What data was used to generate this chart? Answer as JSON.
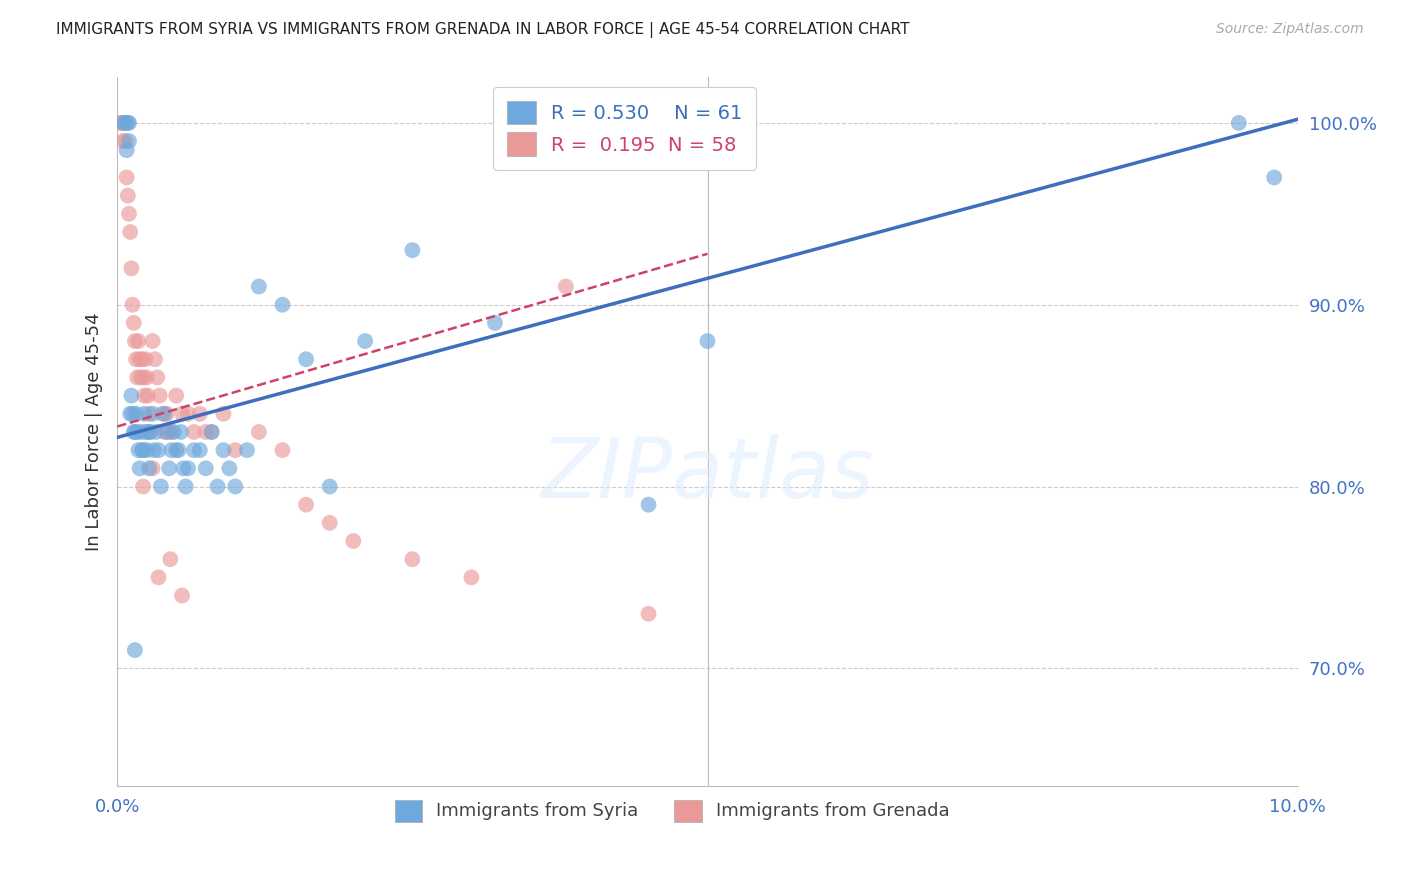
{
  "title": "IMMIGRANTS FROM SYRIA VS IMMIGRANTS FROM GRENADA IN LABOR FORCE | AGE 45-54 CORRELATION CHART",
  "source": "Source: ZipAtlas.com",
  "ylabel": "In Labor Force | Age 45-54",
  "yticks": [
    0.7,
    0.8,
    0.9,
    1.0
  ],
  "ytick_labels": [
    "70.0%",
    "80.0%",
    "90.0%",
    "100.0%"
  ],
  "xlim": [
    0.0,
    10.0
  ],
  "ylim": [
    0.635,
    1.025
  ],
  "legend_syria": "R = 0.530    N = 61",
  "legend_grenada": "R =  0.195  N = 58",
  "color_syria": "#6fa8dc",
  "color_grenada": "#ea9999",
  "color_trend_syria": "#3d6fbe",
  "color_trend_grenada": "#cc4466",
  "color_axis_text": "#4472c4",
  "color_grid": "#cccccc",
  "background_color": "#ffffff",
  "syria_x": [
    0.05,
    0.07,
    0.08,
    0.09,
    0.1,
    0.1,
    0.11,
    0.12,
    0.13,
    0.14,
    0.15,
    0.16,
    0.17,
    0.18,
    0.19,
    0.2,
    0.21,
    0.22,
    0.23,
    0.24,
    0.25,
    0.26,
    0.27,
    0.28,
    0.3,
    0.31,
    0.33,
    0.35,
    0.37,
    0.4,
    0.42,
    0.44,
    0.46,
    0.48,
    0.5,
    0.52,
    0.54,
    0.56,
    0.58,
    0.6,
    0.65,
    0.7,
    0.75,
    0.8,
    0.85,
    0.9,
    0.95,
    1.0,
    1.1,
    1.2,
    1.4,
    1.6,
    1.8,
    2.1,
    2.5,
    3.2,
    4.5,
    5.0,
    9.5,
    9.8,
    0.15
  ],
  "syria_y": [
    1.0,
    1.0,
    0.985,
    1.0,
    0.99,
    1.0,
    0.84,
    0.85,
    0.84,
    0.83,
    0.83,
    0.84,
    0.83,
    0.82,
    0.81,
    0.83,
    0.82,
    0.82,
    0.84,
    0.83,
    0.82,
    0.83,
    0.81,
    0.83,
    0.84,
    0.82,
    0.83,
    0.82,
    0.8,
    0.84,
    0.83,
    0.81,
    0.82,
    0.83,
    0.82,
    0.82,
    0.83,
    0.81,
    0.8,
    0.81,
    0.82,
    0.82,
    0.81,
    0.83,
    0.8,
    0.82,
    0.81,
    0.8,
    0.82,
    0.91,
    0.9,
    0.87,
    0.8,
    0.88,
    0.93,
    0.89,
    0.79,
    0.88,
    1.0,
    0.97,
    0.71
  ],
  "grenada_x": [
    0.02,
    0.04,
    0.05,
    0.06,
    0.07,
    0.08,
    0.09,
    0.1,
    0.11,
    0.12,
    0.13,
    0.14,
    0.15,
    0.16,
    0.17,
    0.18,
    0.19,
    0.2,
    0.21,
    0.22,
    0.23,
    0.24,
    0.25,
    0.26,
    0.27,
    0.28,
    0.3,
    0.32,
    0.34,
    0.36,
    0.38,
    0.4,
    0.42,
    0.44,
    0.46,
    0.5,
    0.55,
    0.6,
    0.65,
    0.7,
    0.75,
    0.8,
    0.9,
    1.0,
    1.2,
    1.4,
    1.6,
    1.8,
    2.0,
    2.5,
    3.0,
    3.8,
    4.5,
    0.22,
    0.3,
    0.35,
    0.45,
    0.55
  ],
  "grenada_y": [
    1.0,
    1.0,
    0.99,
    1.0,
    0.99,
    0.97,
    0.96,
    0.95,
    0.94,
    0.92,
    0.9,
    0.89,
    0.88,
    0.87,
    0.86,
    0.88,
    0.87,
    0.86,
    0.87,
    0.86,
    0.85,
    0.87,
    0.86,
    0.85,
    0.84,
    0.83,
    0.88,
    0.87,
    0.86,
    0.85,
    0.84,
    0.83,
    0.84,
    0.83,
    0.83,
    0.85,
    0.84,
    0.84,
    0.83,
    0.84,
    0.83,
    0.83,
    0.84,
    0.82,
    0.83,
    0.82,
    0.79,
    0.78,
    0.77,
    0.76,
    0.75,
    0.91,
    0.73,
    0.8,
    0.81,
    0.75,
    0.76,
    0.74
  ],
  "trend_syria_x0": 0.0,
  "trend_syria_x1": 10.0,
  "trend_syria_y0": 0.827,
  "trend_syria_y1": 1.002,
  "trend_grenada_x0": 0.0,
  "trend_grenada_x1": 5.0,
  "trend_grenada_y0": 0.833,
  "trend_grenada_y1": 0.928
}
